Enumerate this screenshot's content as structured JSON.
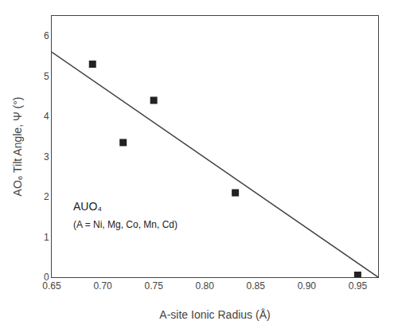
{
  "chart_data": {
    "type": "scatter",
    "xlabel": "A-site Ionic Radius (Å)",
    "ylabel": "AO₆ Tilt Angle, Ψ (°)",
    "annotations": [
      "AUO₄",
      "(A = Ni, Mg, Co, Mn, Cd)"
    ],
    "series": [
      {
        "type": "scatter",
        "x": [
          0.69,
          0.72,
          0.75,
          0.83,
          0.95
        ],
        "values": [
          5.3,
          3.35,
          4.4,
          2.1,
          0.05
        ],
        "color": "#222222",
        "marker": "square"
      },
      {
        "type": "line",
        "x": [
          0.65,
          0.97
        ],
        "values": [
          5.6,
          0.0
        ],
        "color": "#444444",
        "line_style": "solid"
      }
    ],
    "xlim": [
      0.65,
      0.97
    ],
    "ylim": [
      0.0,
      6.5
    ],
    "xticks": [
      0.65,
      {
        "value": 0.7,
        "label": "0.70"
      },
      0.75,
      {
        "value": 0.8,
        "label": "0.80"
      },
      0.85,
      {
        "value": 0.9,
        "label": "0.90"
      },
      0.95
    ],
    "yticks": [
      0,
      1,
      2,
      3,
      4,
      5,
      6
    ],
    "grid": false,
    "background_color": "#ffffff"
  }
}
